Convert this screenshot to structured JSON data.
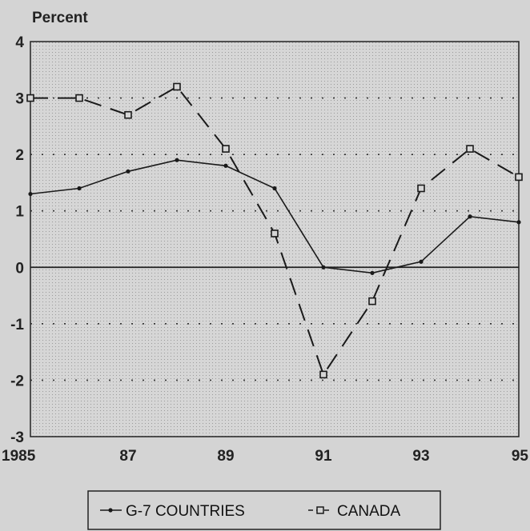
{
  "chart_data": {
    "type": "line",
    "title": "",
    "ylabel": "Percent",
    "xlabel": "",
    "x": [
      1985,
      1986,
      1987,
      1988,
      1989,
      1990,
      1991,
      1992,
      1993,
      1994,
      1995
    ],
    "x_tick_values": [
      1985,
      1987,
      1989,
      1991,
      1993,
      1995
    ],
    "x_tick_labels": [
      "1985",
      "87",
      "89",
      "91",
      "93",
      "95"
    ],
    "ylim": [
      -3,
      4
    ],
    "y_ticks": [
      -3,
      -2,
      -1,
      0,
      1,
      2,
      3,
      4
    ],
    "y_tick_labels": [
      "-3",
      "-2",
      "-1",
      "0",
      "1",
      "2",
      "3",
      "4"
    ],
    "grid": "dotted horizontal at each integer",
    "legend_position": "bottom-center",
    "series": [
      {
        "name": "G-7 COUNTRIES",
        "style": "solid",
        "marker": "dot",
        "values": [
          1.3,
          1.4,
          1.7,
          1.9,
          1.8,
          1.4,
          0.0,
          -0.1,
          0.1,
          0.9,
          0.8
        ]
      },
      {
        "name": "CANADA",
        "style": "dashed",
        "marker": "open-square",
        "values": [
          3.0,
          3.0,
          2.7,
          3.2,
          2.1,
          0.6,
          -1.9,
          -0.6,
          1.4,
          2.1,
          1.6
        ]
      }
    ],
    "colors": {
      "background": "#d4d4d4",
      "plot_background": "#d6d6d6",
      "line": "#1a1a1a"
    }
  }
}
